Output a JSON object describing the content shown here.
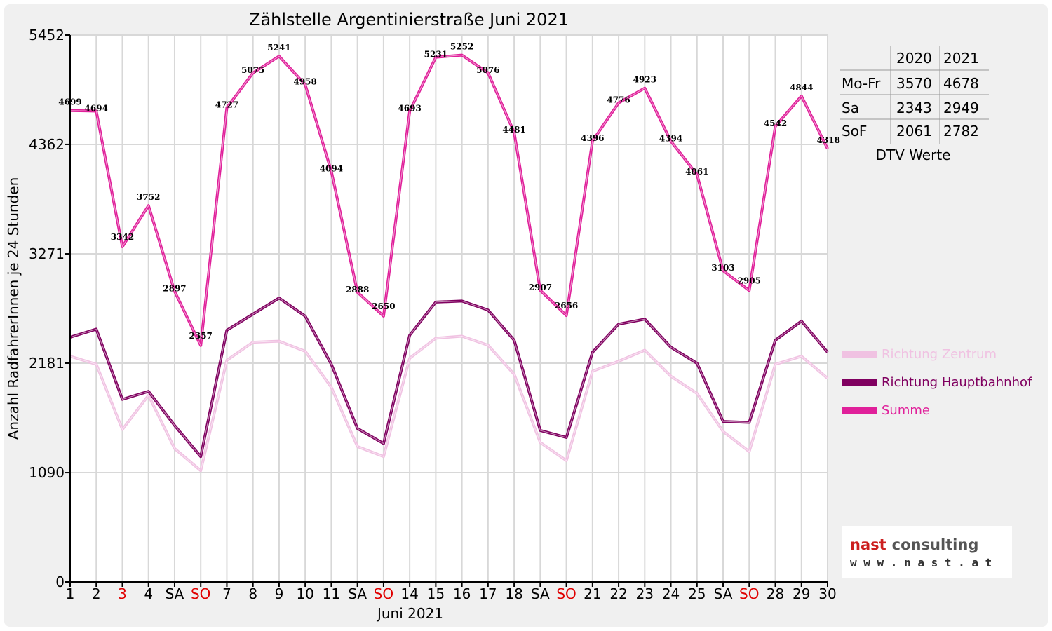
{
  "chart_data": {
    "type": "line",
    "title": "Zählstelle Argentinierstraße Juni 2021",
    "xlabel": "Juni 2021",
    "ylabel": "Anzahl RadfahrerInnen je 24 Stunden",
    "ylim": [
      0,
      5452
    ],
    "yticks": [
      0,
      1090,
      2181,
      3271,
      4362,
      5452
    ],
    "grid": true,
    "legend_position": "right",
    "categories": [
      "1",
      "2",
      "3",
      "4",
      "SA",
      "SO",
      "7",
      "8",
      "9",
      "10",
      "11",
      "SA",
      "SO",
      "14",
      "15",
      "16",
      "17",
      "18",
      "SA",
      "SO",
      "21",
      "22",
      "23",
      "24",
      "25",
      "SA",
      "SO",
      "28",
      "29",
      "30"
    ],
    "red_categories": [
      2,
      5,
      12,
      19,
      26
    ],
    "series": [
      {
        "name": "Richtung Zentrum",
        "color": "#f0c2e2",
        "values": [
          2250,
          2170,
          1520,
          1860,
          1330,
          1110,
          2210,
          2390,
          2400,
          2300,
          1940,
          1350,
          1250,
          2230,
          2430,
          2450,
          2360,
          2070,
          1390,
          1210,
          2100,
          2200,
          2310,
          2050,
          1880,
          1500,
          1300,
          2170,
          2250,
          2030
        ]
      },
      {
        "name": "Richtung Hauptbahnhof",
        "color": "#800060",
        "values": [
          2440,
          2520,
          1820,
          1900,
          1560,
          1250,
          2510,
          2670,
          2830,
          2650,
          2170,
          1530,
          1380,
          2460,
          2790,
          2800,
          2710,
          2410,
          1510,
          1440,
          2290,
          2570,
          2620,
          2340,
          2180,
          1600,
          1590,
          2410,
          2600,
          2290
        ]
      },
      {
        "name": "Summe",
        "color": "#e0209a",
        "values": [
          4699,
          4694,
          3342,
          3752,
          2897,
          2357,
          4727,
          5075,
          5241,
          4958,
          4094,
          2888,
          2650,
          4693,
          5231,
          5252,
          5076,
          4481,
          2907,
          2656,
          4396,
          4776,
          4923,
          4394,
          4061,
          3103,
          2905,
          4542,
          4844,
          4318
        ],
        "labels": [
          "4699",
          "4694",
          "3342",
          "3752",
          "2897",
          "2357",
          "4727",
          "5075",
          "5241",
          "4958",
          "4094",
          "2888",
          "2650",
          "4693",
          "5231",
          "5252",
          "5076",
          "4481",
          "2907",
          "2656",
          "4396",
          "4776",
          "4923",
          "4394",
          "4061",
          "3103",
          "2905",
          "4542",
          "4844",
          "4318"
        ]
      }
    ],
    "table": {
      "columns": [
        "",
        "2020",
        "2021"
      ],
      "rows": [
        [
          "Mo-Fr",
          "3570",
          "4678"
        ],
        [
          "Sa",
          "2343",
          "2949"
        ],
        [
          "SoF",
          "2061",
          "2782"
        ]
      ],
      "caption": "DTV Werte"
    }
  },
  "logo": {
    "line1_nast": "nast",
    "line1_consulting": "consulting",
    "line2": "w w w . n a s t . a t",
    "accent_color": "#cc1f1f"
  }
}
